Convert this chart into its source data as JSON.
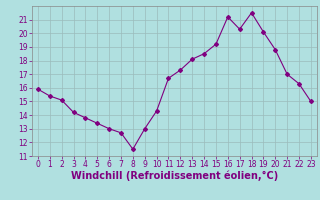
{
  "x": [
    0,
    1,
    2,
    3,
    4,
    5,
    6,
    7,
    8,
    9,
    10,
    11,
    12,
    13,
    14,
    15,
    16,
    17,
    18,
    19,
    20,
    21,
    22,
    23
  ],
  "y": [
    15.9,
    15.4,
    15.1,
    14.2,
    13.8,
    13.4,
    13.0,
    12.7,
    11.5,
    13.0,
    14.3,
    16.7,
    17.3,
    18.1,
    18.5,
    19.2,
    21.2,
    20.3,
    21.5,
    20.1,
    18.8,
    17.0,
    16.3,
    15.0
  ],
  "line_color": "#800080",
  "marker": "D",
  "marker_size": 2,
  "bg_color": "#b0e0e0",
  "grid_color": "#9bbcbc",
  "xlabel": "Windchill (Refroidissement éolien,°C)",
  "ylim": [
    11,
    22
  ],
  "xlim": [
    -0.5,
    23.5
  ],
  "yticks": [
    11,
    12,
    13,
    14,
    15,
    16,
    17,
    18,
    19,
    20,
    21
  ],
  "xticks": [
    0,
    1,
    2,
    3,
    4,
    5,
    6,
    7,
    8,
    9,
    10,
    11,
    12,
    13,
    14,
    15,
    16,
    17,
    18,
    19,
    20,
    21,
    22,
    23
  ],
  "tick_color": "#800080",
  "tick_fontsize": 5.5,
  "xlabel_fontsize": 7.0,
  "linewidth": 0.8
}
